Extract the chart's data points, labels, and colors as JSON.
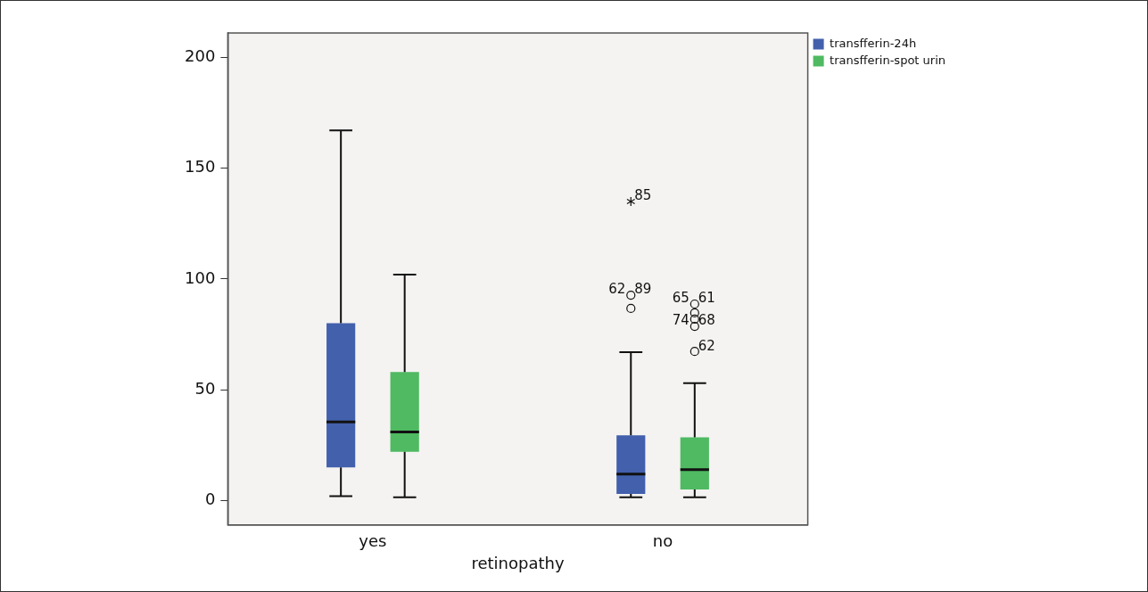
{
  "chart_data": {
    "type": "box",
    "xlabel": "retinopathy",
    "categories": [
      "yes",
      "no"
    ],
    "series": [
      {
        "name": "transfferin-24h",
        "color": "#4360ad",
        "boxes": [
          {
            "low": 2,
            "q1": 15,
            "median": 35.5,
            "q3": 80,
            "high": 167
          },
          {
            "low": 1.5,
            "q1": 3,
            "median": 12,
            "q3": 29.5,
            "high": 67,
            "outliers": [
              135,
              92.7,
              86.7
            ]
          }
        ]
      },
      {
        "name": "transfferin-spot urin",
        "color": "#4fba62",
        "boxes": [
          {
            "low": 1.5,
            "q1": 22,
            "median": 31,
            "q3": 58,
            "high": 102
          },
          {
            "low": 1.5,
            "q1": 5,
            "median": 14,
            "q3": 28.5,
            "high": 53,
            "outliers": [
              88.7,
              84.7,
              81.9,
              78.6,
              67.3
            ]
          }
        ]
      }
    ],
    "ylim": [
      -11,
      211
    ],
    "yticks": [
      0,
      50,
      100,
      150,
      200
    ],
    "grid": false,
    "legend": "top right",
    "annotations": [
      "85",
      "89",
      "62",
      "61",
      "65",
      "68",
      "74",
      "62"
    ]
  }
}
